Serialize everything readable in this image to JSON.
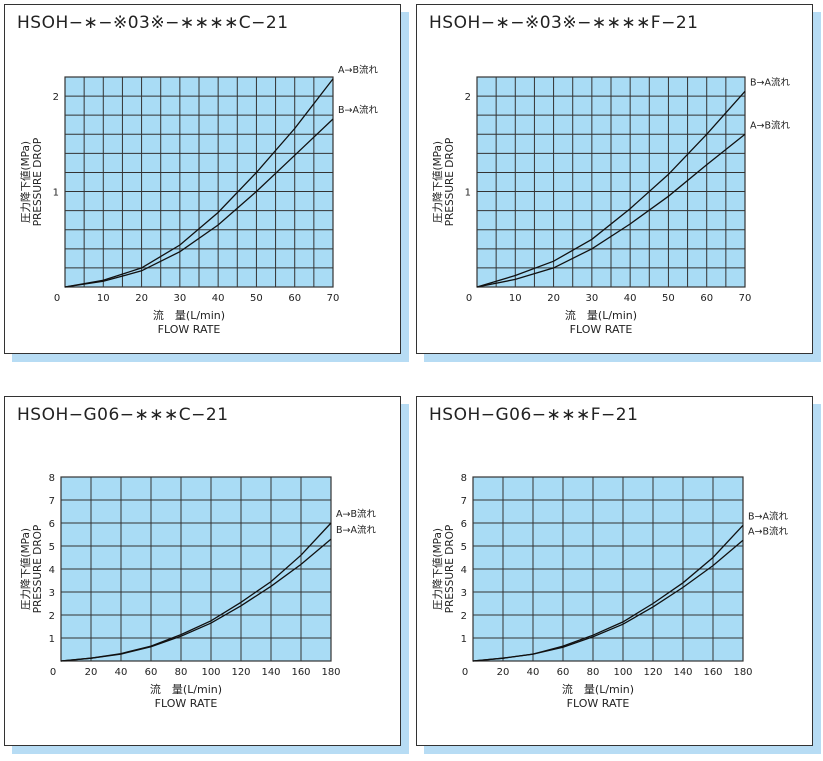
{
  "colors": {
    "plot_bg": "#a9dcf5",
    "grid": "#333333",
    "line": "#111111",
    "shadow": "#b7dcf4"
  },
  "charts": [
    {
      "title": "HSOH−∗−※03※−∗∗∗∗C−21",
      "chart_data": {
        "type": "line",
        "xlabel_jp": "流　量(L/min)",
        "xlabel": "FLOW RATE",
        "ylabel_jp": "圧力降下値(MPa)",
        "ylabel": "PRESSURE DROP",
        "xlim": [
          0,
          70
        ],
        "ylim": [
          0,
          2.2
        ],
        "x_ticks": [
          "0",
          "10",
          "20",
          "30",
          "40",
          "50",
          "60",
          "70"
        ],
        "y_ticks": [
          "0",
          "1",
          "2"
        ],
        "series": [
          {
            "name": "A→B流れ",
            "x": [
              0,
              10,
              20,
              30,
              40,
              50,
              60,
              70
            ],
            "y": [
              0,
              0.07,
              0.2,
              0.44,
              0.78,
              1.2,
              1.66,
              2.18
            ]
          },
          {
            "name": "B→A流れ",
            "x": [
              0,
              10,
              20,
              30,
              40,
              50,
              60,
              70
            ],
            "y": [
              0,
              0.06,
              0.17,
              0.37,
              0.65,
              1.0,
              1.38,
              1.76
            ]
          }
        ]
      }
    },
    {
      "title": "HSOH−∗−※03※−∗∗∗∗F−21",
      "chart_data": {
        "type": "line",
        "xlabel_jp": "流　量(L/min)",
        "xlabel": "FLOW RATE",
        "ylabel_jp": "圧力降下値(MPa)",
        "ylabel": "PRESSURE DROP",
        "xlim": [
          0,
          70
        ],
        "ylim": [
          0,
          2.2
        ],
        "x_ticks": [
          "0",
          "10",
          "20",
          "30",
          "40",
          "50",
          "60",
          "70"
        ],
        "y_ticks": [
          "0",
          "1",
          "2"
        ],
        "series": [
          {
            "name": "B→A流れ",
            "x": [
              0,
              10,
              20,
              30,
              40,
              50,
              60,
              70
            ],
            "y": [
              0,
              0.12,
              0.27,
              0.5,
              0.82,
              1.18,
              1.6,
              2.05
            ]
          },
          {
            "name": "A→B流れ",
            "x": [
              0,
              10,
              20,
              30,
              40,
              50,
              60,
              70
            ],
            "y": [
              0,
              0.08,
              0.2,
              0.4,
              0.66,
              0.95,
              1.28,
              1.6
            ]
          }
        ]
      }
    },
    {
      "title": "HSOH−G06−∗∗∗C−21",
      "chart_data": {
        "type": "line",
        "xlabel_jp": "流　量(L/min)",
        "xlabel": "FLOW RATE",
        "ylabel_jp": "圧力降下値(MPa)",
        "ylabel": "PRESSURE DROP",
        "xlim": [
          0,
          180
        ],
        "ylim": [
          0,
          8
        ],
        "x_ticks": [
          "0",
          "20",
          "40",
          "60",
          "80",
          "100",
          "120",
          "140",
          "160",
          "180"
        ],
        "y_ticks": [
          "0",
          "1",
          "2",
          "3",
          "4",
          "5",
          "6",
          "7",
          "8"
        ],
        "series": [
          {
            "name": "A→B流れ",
            "x": [
              0,
              20,
              40,
              60,
              80,
              100,
              120,
              140,
              160,
              180
            ],
            "y": [
              0,
              0.12,
              0.32,
              0.65,
              1.15,
              1.75,
              2.55,
              3.45,
              4.6,
              6.0
            ]
          },
          {
            "name": "B→A流れ",
            "x": [
              0,
              20,
              40,
              60,
              80,
              100,
              120,
              140,
              160,
              180
            ],
            "y": [
              0,
              0.12,
              0.3,
              0.62,
              1.08,
              1.65,
              2.4,
              3.25,
              4.2,
              5.3
            ]
          }
        ]
      }
    },
    {
      "title": "HSOH−G06−∗∗∗F−21",
      "chart_data": {
        "type": "line",
        "xlabel_jp": "流　量(L/min)",
        "xlabel": "FLOW RATE",
        "ylabel_jp": "圧力降下値(MPa)",
        "ylabel": "PRESSURE DROP",
        "xlim": [
          0,
          180
        ],
        "ylim": [
          0,
          8
        ],
        "x_ticks": [
          "0",
          "20",
          "40",
          "60",
          "80",
          "100",
          "120",
          "140",
          "160",
          "180"
        ],
        "y_ticks": [
          "0",
          "1",
          "2",
          "3",
          "4",
          "5",
          "6",
          "7",
          "8"
        ],
        "series": [
          {
            "name": "B→A流れ",
            "x": [
              0,
              20,
              40,
              60,
              80,
              100,
              120,
              140,
              160,
              180
            ],
            "y": [
              0,
              0.12,
              0.3,
              0.65,
              1.12,
              1.7,
              2.5,
              3.4,
              4.5,
              5.9
            ]
          },
          {
            "name": "A→B流れ",
            "x": [
              0,
              20,
              40,
              60,
              80,
              100,
              120,
              140,
              160,
              180
            ],
            "y": [
              0,
              0.12,
              0.3,
              0.6,
              1.05,
              1.6,
              2.35,
              3.2,
              4.15,
              5.25
            ]
          }
        ]
      }
    }
  ]
}
